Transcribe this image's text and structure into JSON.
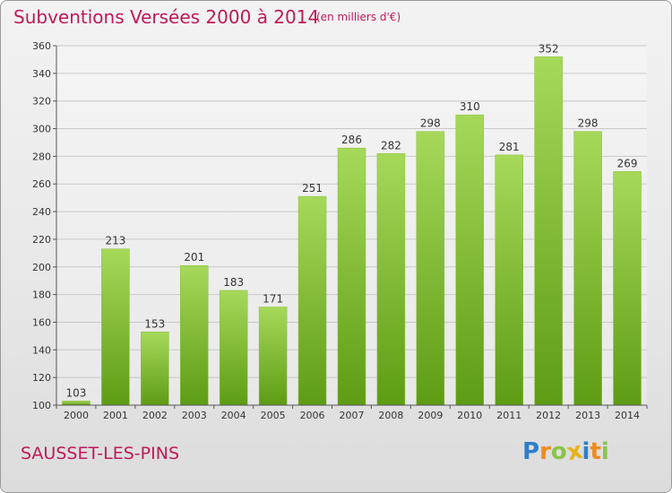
{
  "header": {
    "title": "Subventions Versées 2000 à 2014",
    "subtitle": "(en milliers d'€)"
  },
  "footer": {
    "commune": "SAUSSET-LES-PINS",
    "logo": {
      "text": "Proxiti",
      "letters": [
        {
          "char": "P",
          "color": "#2f7fc8"
        },
        {
          "char": "r",
          "color": "#f08a1c"
        },
        {
          "char": "o",
          "color": "#8bc34a"
        },
        {
          "char": "x",
          "color": "#e8b21a"
        },
        {
          "char": "i",
          "color": "#2f7fc8"
        },
        {
          "char": "t",
          "color": "#f08a1c"
        },
        {
          "char": "i",
          "color": "#8bc34a"
        }
      ]
    }
  },
  "colors": {
    "title": "#c0185a",
    "bar_light": "#a6d95a",
    "bar_dark": "#5e9c14",
    "grid": "#c8c8c8",
    "axis": "#555555",
    "label": "#333333"
  },
  "chart_data": {
    "type": "bar",
    "title": "Subventions Versées 2000 à 2014",
    "subtitle": "(en milliers d'€)",
    "xlabel": "",
    "ylabel": "",
    "categories": [
      "2000",
      "2001",
      "2002",
      "2003",
      "2004",
      "2005",
      "2006",
      "2007",
      "2008",
      "2009",
      "2010",
      "2011",
      "2012",
      "2013",
      "2014"
    ],
    "values": [
      103,
      213,
      153,
      201,
      183,
      171,
      251,
      286,
      282,
      298,
      310,
      281,
      352,
      298,
      269
    ],
    "data_labels": [
      "103",
      "213",
      "153",
      "201",
      "183",
      "171",
      "251",
      "286",
      "282",
      "298",
      "310",
      "281",
      "352",
      "298",
      "269"
    ],
    "ylim": [
      100,
      360
    ],
    "yticks": [
      100,
      120,
      140,
      160,
      180,
      200,
      220,
      240,
      260,
      280,
      300,
      320,
      340,
      360
    ],
    "ytick_labels": [
      "100",
      "120",
      "140",
      "160",
      "180",
      "200",
      "220",
      "240",
      "260",
      "280",
      "300",
      "320",
      "340",
      "360"
    ],
    "grid": true,
    "legend": "none"
  }
}
